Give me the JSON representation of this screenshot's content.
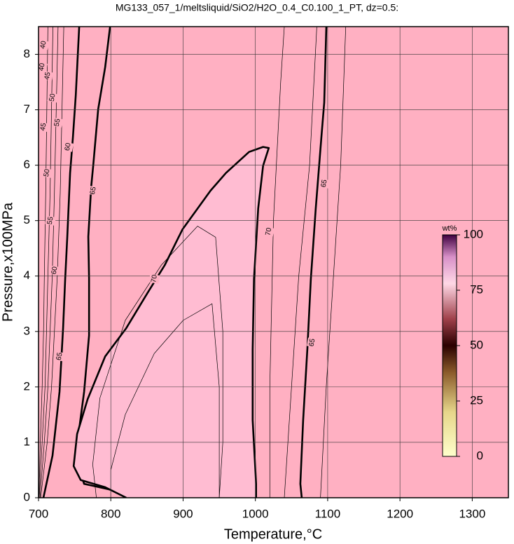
{
  "chart_data": {
    "type": "contour",
    "title": "MG133_057_1/meltsliquid/SiO2/H2O_0.4_C0.100_1_PT, dz=0.5:",
    "xlabel": "Temperature,°C",
    "ylabel": "Pressure,x100MPa",
    "xlim": [
      700,
      1350
    ],
    "ylim": [
      0,
      8.5
    ],
    "xticks": [
      700,
      800,
      900,
      1000,
      1100,
      1200,
      1300
    ],
    "yticks": [
      0,
      1,
      2,
      3,
      4,
      5,
      6,
      7,
      8
    ],
    "grid": true,
    "background": "#ffb0c2",
    "contours": [
      {
        "style": "thin",
        "x": [
          700.5,
          702.5,
          705,
          707,
          708,
          710,
          713
        ],
        "y": [
          0,
          1,
          2,
          3,
          4,
          5.5,
          8.5
        ]
      },
      {
        "style": "thin",
        "x": [
          701,
          705,
          709,
          711,
          713,
          716,
          720
        ],
        "y": [
          0,
          1,
          2,
          3,
          4,
          5.5,
          8.5
        ]
      },
      {
        "style": "thin",
        "x": [
          702,
          708,
          713,
          716,
          719,
          722,
          727
        ],
        "y": [
          0,
          1,
          2,
          3,
          4,
          5.5,
          8.5
        ]
      },
      {
        "style": "thin",
        "x": [
          703,
          712,
          718,
          722,
          726,
          730,
          735
        ],
        "y": [
          0,
          1,
          2,
          3,
          4,
          5.5,
          8.5
        ]
      },
      {
        "style": "bold",
        "x": [
          706.8,
          719.4,
          729.1,
          734.0,
          736.9,
          739.8,
          743.7,
          747.6,
          751.5,
          756.3
        ],
        "y": [
          0,
          0.76,
          1.91,
          3.06,
          3.95,
          4.71,
          5.86,
          6.5,
          7.26,
          8.5
        ]
      },
      {
        "style": "bold",
        "x": [
          804.9,
          763.1,
          750.5,
          755.3,
          763.1,
          769.9,
          769.9,
          768.9,
          772.8,
          775.7,
          782.5,
          792.2,
          799.0
        ],
        "y": [
          0.13,
          0.25,
          0.76,
          1.15,
          1.91,
          2.93,
          3.95,
          4.71,
          5.61,
          5.99,
          7.01,
          7.77,
          8.5
        ]
      },
      {
        "style": "bold",
        "fill": "#ffbcd2",
        "x": [
          1001.0,
          1001.0,
          996.2,
          996.2,
          998.1,
          1003.9,
          1010.7,
          1018.5,
          1010.7,
          991.3,
          959.3,
          937.9,
          899.1,
          874.8,
          850.5,
          821.4,
          792.2,
          768.0,
          753.4,
          748.6,
          758.3,
          792.2,
          821.4
        ],
        "y": [
          0,
          0.25,
          1.4,
          2.68,
          3.95,
          5.22,
          5.99,
          6.31,
          6.33,
          6.24,
          5.86,
          5.54,
          4.84,
          4.2,
          3.69,
          3.06,
          2.55,
          1.78,
          1.15,
          0.57,
          0.32,
          0.19,
          0
        ]
      },
      {
        "style": "thin",
        "x": [
          780,
          775,
          785,
          820,
          870,
          920,
          945,
          955,
          955,
          950
        ],
        "y": [
          0,
          0.6,
          1.8,
          3.2,
          4.2,
          4.9,
          4.7,
          3.0,
          1.0,
          0
        ]
      },
      {
        "style": "thin",
        "x": [
          800,
          800,
          820,
          860,
          900,
          940,
          950,
          950
        ],
        "y": [
          0,
          0.5,
          1.5,
          2.6,
          3.2,
          3.5,
          2.0,
          0
        ]
      },
      {
        "style": "thin",
        "x": [
          1020,
          1020,
          1025,
          1035,
          1040
        ],
        "y": [
          0,
          2,
          5,
          7.5,
          8.5
        ]
      },
      {
        "style": "bold",
        "x": [
          1064.1,
          1062.2,
          1066.1,
          1071.9,
          1076.7,
          1083.5,
          1091.3,
          1095.2,
          1098.1
        ],
        "y": [
          0,
          0.25,
          1.4,
          2.68,
          3.95,
          5.22,
          6.5,
          7.13,
          8.5
        ]
      },
      {
        "style": "thin",
        "x": [
          1040,
          1050,
          1060,
          1075,
          1085
        ],
        "y": [
          0,
          2,
          4,
          6,
          8.5
        ]
      },
      {
        "style": "thin",
        "x": [
          1090,
          1098,
          1108,
          1118,
          1125
        ],
        "y": [
          0,
          2,
          4,
          6,
          8.5
        ]
      }
    ],
    "contour_labels": [
      {
        "value": 40,
        "x": 706.8,
        "y": 8.17
      },
      {
        "value": 40,
        "x": 704.9,
        "y": 7.77
      },
      {
        "value": 45,
        "x": 712.6,
        "y": 7.61
      },
      {
        "value": 50,
        "x": 719.4,
        "y": 7.22
      },
      {
        "value": 55,
        "x": 726.2,
        "y": 6.77
      },
      {
        "value": 45,
        "x": 706.8,
        "y": 6.69
      },
      {
        "value": 60,
        "x": 740.8,
        "y": 6.33
      },
      {
        "value": 50,
        "x": 711.7,
        "y": 5.86
      },
      {
        "value": 55,
        "x": 716.5,
        "y": 5.0
      },
      {
        "value": 60,
        "x": 722.3,
        "y": 4.1
      },
      {
        "value": 65,
        "x": 729.1,
        "y": 2.55
      },
      {
        "value": 65,
        "x": 775.7,
        "y": 5.54
      },
      {
        "value": 70,
        "x": 860.2,
        "y": 3.95
      },
      {
        "value": 70,
        "x": 1018.5,
        "y": 4.8
      },
      {
        "value": 65,
        "x": 1095.2,
        "y": 5.67
      },
      {
        "value": 65,
        "x": 1078.7,
        "y": 2.8
      }
    ],
    "colorbar": {
      "label": "wt%",
      "clim": [
        0,
        100
      ],
      "ticks": [
        0,
        25,
        50,
        75,
        100
      ],
      "stops": [
        {
          "value": 0,
          "color": "#ffffcc"
        },
        {
          "value": 20,
          "color": "#e6d68a"
        },
        {
          "value": 38,
          "color": "#8a5a2a"
        },
        {
          "value": 50,
          "color": "#2a0000"
        },
        {
          "value": 62,
          "color": "#a0404a"
        },
        {
          "value": 78,
          "color": "#ffd8e6"
        },
        {
          "value": 90,
          "color": "#d890c8"
        },
        {
          "value": 100,
          "color": "#400040"
        }
      ]
    }
  }
}
